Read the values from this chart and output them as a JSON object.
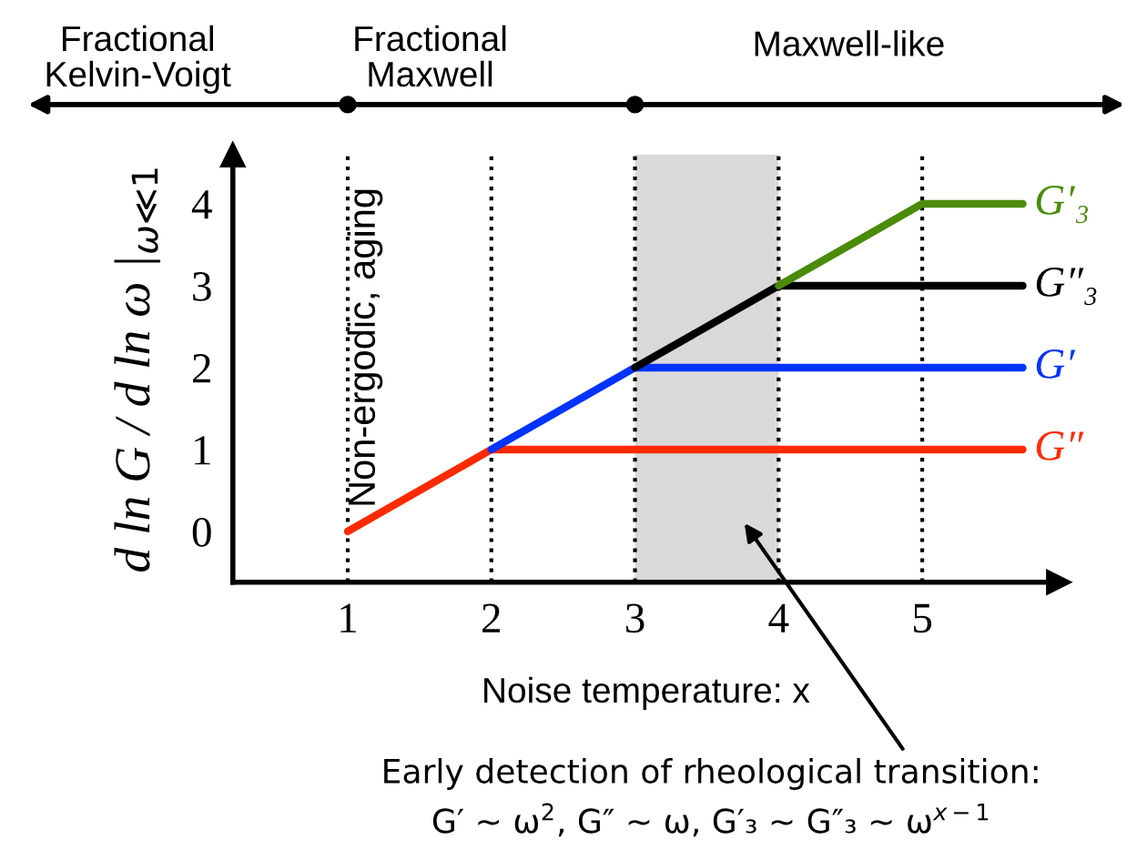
{
  "chart_data": {
    "type": "line",
    "xlabel": "Noise temperature: x",
    "ylabel": "d ln G / d ln ω |$_{ω≪1}$",
    "xlim": [
      0.2,
      5.95
    ],
    "ylim": [
      -0.62,
      4.6
    ],
    "xticks": [
      1,
      2,
      3,
      4,
      5
    ],
    "yticks": [
      0,
      1,
      2,
      3,
      4
    ],
    "grid": false,
    "legend": false,
    "marker": "none",
    "line_style": "solid",
    "series": [
      {
        "name": "G″",
        "color": "#ff2a00",
        "x": [
          1,
          2,
          5.7
        ],
        "values": [
          0,
          1,
          1
        ]
      },
      {
        "name": "G′",
        "color": "#0033ff",
        "x": [
          2,
          3,
          5.7
        ],
        "values": [
          1,
          2,
          2
        ]
      },
      {
        "name": "G″₃",
        "color": "#000000",
        "x": [
          3,
          4,
          5.7
        ],
        "values": [
          2,
          3,
          3
        ]
      },
      {
        "name": "G′₃",
        "color": "#4a8c0a",
        "x": [
          4,
          5,
          5.7
        ],
        "values": [
          3,
          4,
          4
        ]
      }
    ],
    "ref_lines": [
      {
        "axis": "x",
        "value": 1,
        "label": "Non-ergodic, aging",
        "line_style": "dotted",
        "color": "#000000"
      },
      {
        "axis": "x",
        "value": 2,
        "line_style": "dotted",
        "color": "#000000"
      },
      {
        "axis": "x",
        "value": 3,
        "line_style": "dotted",
        "color": "#000000"
      },
      {
        "axis": "x",
        "value": 4,
        "line_style": "dotted",
        "color": "#000000"
      },
      {
        "axis": "x",
        "value": 5,
        "line_style": "dotted",
        "color": "#000000"
      }
    ],
    "bands": [
      {
        "axis": "x",
        "from": 3,
        "to": 4,
        "color": "#d9d9d9"
      }
    ],
    "annotations": [
      "Fractional\nKelvin-Voigt",
      "Fractional\nMaxwell",
      "Maxwell-like",
      "Early detection of rheological transition:\nG′ ∼ ω$^{2}$, G″ ∼ ω, G′₃ ∼ G″₃ ∼ ω$^{x−1}$"
    ]
  }
}
